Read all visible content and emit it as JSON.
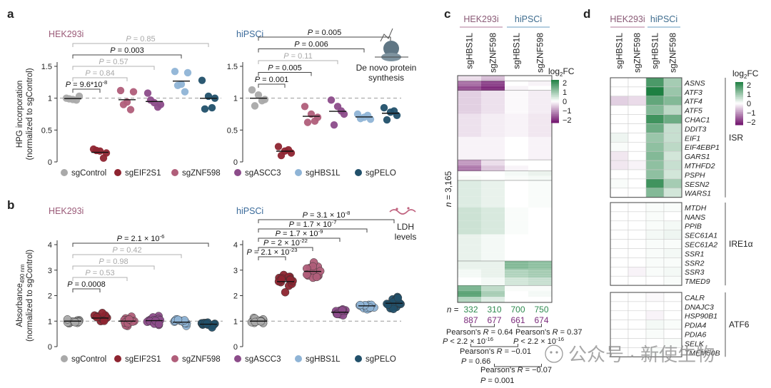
{
  "figure": {
    "panel_labels": [
      "a",
      "b",
      "c",
      "d"
    ],
    "groups": [
      "HEK293i",
      "hiPSCi"
    ],
    "condition_labels": [
      "sgControl",
      "sgEIF2S1",
      "sgZNF598",
      "sgASCC3",
      "sgHBS1L",
      "sgPELO"
    ],
    "colors": [
      "#a9a9a9",
      "#8e2430",
      "#b05e7a",
      "#8c4c8a",
      "#8fb4d6",
      "#21506a"
    ],
    "watermark": "公众号 · 新使生物"
  },
  "chart_data": [
    {
      "type": "scatter",
      "panel": "a",
      "groups": [
        "HEK293i",
        "hiPSCi"
      ],
      "ylabel_line1": "HPG incorporation",
      "ylabel_line2": "(normalized to sgControl)",
      "ylim": [
        0,
        1.5
      ],
      "yticks": [
        "0",
        "0.5",
        "1",
        "1.5"
      ],
      "icon_caption": [
        "De novo protein",
        "synthesis"
      ],
      "series": [
        {
          "group": "HEK293i",
          "name": "sgControl",
          "values": [
            1.0,
            0.98,
            1.03,
            0.99,
            0.97
          ]
        },
        {
          "group": "HEK293i",
          "name": "sgEIF2S1",
          "values": [
            0.2,
            0.17,
            0.14,
            0.18,
            0.06
          ]
        },
        {
          "group": "HEK293i",
          "name": "sgZNF598",
          "values": [
            1.12,
            0.94,
            1.1,
            0.9,
            0.82
          ]
        },
        {
          "group": "HEK293i",
          "name": "sgASCC3",
          "values": [
            1.08,
            0.93,
            0.9,
            0.97,
            0.86
          ]
        },
        {
          "group": "HEK293i",
          "name": "sgHBS1L",
          "values": [
            1.42,
            1.22,
            1.4,
            1.2,
            1.1
          ]
        },
        {
          "group": "HEK293i",
          "name": "sgPELO",
          "values": [
            1.28,
            1.03,
            1.0,
            0.83,
            0.85
          ]
        },
        {
          "group": "hiPSCi",
          "name": "sgControl",
          "values": [
            1.13,
            1.05,
            0.98,
            0.88,
            0.96
          ]
        },
        {
          "group": "hiPSCi",
          "name": "sgEIF2S1",
          "values": [
            0.24,
            0.17,
            0.14,
            0.1,
            0.19
          ]
        },
        {
          "group": "hiPSCi",
          "name": "sgZNF598",
          "values": [
            0.87,
            0.75,
            0.7,
            0.62,
            0.64
          ]
        },
        {
          "group": "hiPSCi",
          "name": "sgASCC3",
          "values": [
            0.97,
            0.87,
            0.75,
            0.58,
            0.8
          ]
        },
        {
          "group": "hiPSCi",
          "name": "sgHBS1L",
          "values": [
            0.75,
            0.7,
            0.67,
            0.68,
            0.73
          ]
        },
        {
          "group": "hiPSCi",
          "name": "sgPELO",
          "values": [
            0.85,
            0.78,
            0.73,
            0.66,
            0.8
          ]
        }
      ],
      "brackets": [
        {
          "group": "HEK293i",
          "from": 0,
          "to": 1,
          "label": "P = 9.6*10^-8",
          "faded": false
        },
        {
          "group": "HEK293i",
          "from": 0,
          "to": 2,
          "label": "P = 0.84",
          "faded": true
        },
        {
          "group": "HEK293i",
          "from": 0,
          "to": 3,
          "label": "P = 0.57",
          "faded": true
        },
        {
          "group": "HEK293i",
          "from": 0,
          "to": 4,
          "label": "P = 0.003",
          "faded": false
        },
        {
          "group": "HEK293i",
          "from": 0,
          "to": 5,
          "label": "P = 0.85",
          "faded": true
        },
        {
          "group": "hiPSCi",
          "from": 0,
          "to": 1,
          "label": "P = 0.001",
          "faded": false
        },
        {
          "group": "hiPSCi",
          "from": 0,
          "to": 2,
          "label": "P = 0.005",
          "faded": false
        },
        {
          "group": "hiPSCi",
          "from": 0,
          "to": 3,
          "label": "P = 0.11",
          "faded": true
        },
        {
          "group": "hiPSCi",
          "from": 0,
          "to": 4,
          "label": "P = 0.006",
          "faded": false
        },
        {
          "group": "hiPSCi",
          "from": 0,
          "to": 5,
          "label": "P = 0.005",
          "faded": false
        }
      ]
    },
    {
      "type": "scatter",
      "panel": "b",
      "groups": [
        "HEK293i",
        "hiPSCi"
      ],
      "ylabel_line1": "Absorbance490 nm",
      "ylabel_line2": "(normalized to sgControl)",
      "ylim": [
        0,
        4
      ],
      "yticks": [
        "0",
        "1",
        "2",
        "3",
        "4"
      ],
      "icon_caption": [
        "LDH",
        "levels"
      ],
      "series": [
        {
          "group": "HEK293i",
          "name": "sgControl",
          "center": 1.0,
          "spread": 0.12,
          "count": 14
        },
        {
          "group": "HEK293i",
          "name": "sgEIF2S1",
          "center": 1.12,
          "spread": 0.25,
          "count": 14
        },
        {
          "group": "HEK293i",
          "name": "sgZNF598",
          "center": 1.0,
          "spread": 0.28,
          "count": 14
        },
        {
          "group": "HEK293i",
          "name": "sgASCC3",
          "center": 1.02,
          "spread": 0.26,
          "count": 14
        },
        {
          "group": "HEK293i",
          "name": "sgHBS1L",
          "center": 0.96,
          "spread": 0.24,
          "count": 14
        },
        {
          "group": "HEK293i",
          "name": "sgPELO",
          "center": 0.88,
          "spread": 0.15,
          "count": 14
        },
        {
          "group": "hiPSCi",
          "name": "sgControl",
          "center": 1.0,
          "spread": 0.18,
          "count": 14
        },
        {
          "group": "hiPSCi",
          "name": "sgEIF2S1",
          "center": 2.55,
          "spread": 0.45,
          "count": 16
        },
        {
          "group": "hiPSCi",
          "name": "sgZNF598",
          "center": 2.95,
          "spread": 0.55,
          "count": 16
        },
        {
          "group": "hiPSCi",
          "name": "sgASCC3",
          "center": 1.35,
          "spread": 0.18,
          "count": 14
        },
        {
          "group": "hiPSCi",
          "name": "sgHBS1L",
          "center": 1.6,
          "spread": 0.38,
          "count": 16
        },
        {
          "group": "hiPSCi",
          "name": "sgPELO",
          "center": 1.7,
          "spread": 0.5,
          "count": 18
        }
      ],
      "brackets": [
        {
          "group": "HEK293i",
          "from": 0,
          "to": 1,
          "label": "P = 0.0008",
          "faded": false
        },
        {
          "group": "HEK293i",
          "from": 0,
          "to": 2,
          "label": "P = 0.53",
          "faded": true
        },
        {
          "group": "HEK293i",
          "from": 0,
          "to": 3,
          "label": "P = 0.98",
          "faded": true
        },
        {
          "group": "HEK293i",
          "from": 0,
          "to": 4,
          "label": "P = 0.42",
          "faded": true
        },
        {
          "group": "HEK293i",
          "from": 0,
          "to": 5,
          "label": "P = 2.1 × 10^-6",
          "faded": false
        },
        {
          "group": "hiPSCi",
          "from": 0,
          "to": 1,
          "label": "P = 2.1 × 10^-23",
          "faded": false
        },
        {
          "group": "hiPSCi",
          "from": 0,
          "to": 2,
          "label": "P = 2 × 10^-22",
          "faded": false
        },
        {
          "group": "hiPSCi",
          "from": 0,
          "to": 3,
          "label": "P = 1.7 × 10^-9",
          "faded": false
        },
        {
          "group": "hiPSCi",
          "from": 0,
          "to": 4,
          "label": "P = 1.7 × 10^-7",
          "faded": false
        },
        {
          "group": "hiPSCi",
          "from": 0,
          "to": 5,
          "label": "P = 3.1 × 10^-8",
          "faded": false
        }
      ]
    },
    {
      "type": "heatmap",
      "panel": "c",
      "group_labels": [
        "HEK293i",
        "hiPSCi"
      ],
      "columns": [
        "sgHBS1L",
        "sgZNF598",
        "sgHBS1L",
        "sgZNF598"
      ],
      "colorbar_title": "log2FC",
      "colorbar_ticks": [
        "2",
        "1",
        "0",
        "−1",
        "−2"
      ],
      "n_label": "n = 3,165",
      "counts_prefix": "n =",
      "counts_up": [
        "332",
        "310",
        "700",
        "750"
      ],
      "counts_down": [
        "887",
        "677",
        "661",
        "674"
      ],
      "correlations": [
        {
          "label": "Pearson's R = 0.64",
          "p": "P < 2.2 × 10^-16"
        },
        {
          "label": "Pearson's R = 0.37",
          "p": "P < 2.2 × 10^-16"
        },
        {
          "label": "Pearson's R = −0.01",
          "p": "P = 0.66"
        },
        {
          "label": "Pearson's R = −0.07",
          "p": "P = 0.001"
        }
      ],
      "blocks": [
        {
          "rows": 6,
          "values": [
            [
              -0.3,
              -0.6,
              0.0,
              0.0
            ]
          ]
        },
        {
          "rows": 10,
          "values": [
            [
              -1.3,
              -1.7,
              0.0,
              -0.1
            ],
            [
              -1.6,
              -1.9,
              -0.1,
              0.0
            ]
          ]
        },
        {
          "rows": 74,
          "values": [
            [
              -0.4,
              -0.25,
              -0.05,
              -0.15
            ],
            [
              -0.25,
              -0.15,
              -0.1,
              -0.2
            ],
            [
              -0.1,
              -0.1,
              0.0,
              -0.1
            ]
          ]
        },
        {
          "rows": 12,
          "values": [
            [
              -0.9,
              -0.3,
              0.0,
              0.0
            ],
            [
              -1.2,
              -0.5,
              -0.1,
              0.0
            ]
          ]
        },
        {
          "rows": 10,
          "values": [
            [
              0.0,
              0.0,
              0.1,
              0.2
            ],
            [
              0.05,
              0.0,
              0.05,
              0.1
            ]
          ]
        },
        {
          "rows": 86,
          "values": [
            [
              0.3,
              0.2,
              0.0,
              0.05
            ],
            [
              0.45,
              0.35,
              0.05,
              0.0
            ],
            [
              0.2,
              0.1,
              0.0,
              0.0
            ]
          ]
        },
        {
          "rows": 26,
          "values": [
            [
              0.2,
              0.2,
              1.1,
              1.0
            ],
            [
              0.1,
              0.2,
              0.7,
              0.8
            ],
            [
              0.0,
              0.1,
              0.4,
              0.5
            ]
          ]
        },
        {
          "rows": 18,
          "values": [
            [
              1.2,
              0.6,
              0.05,
              0.05
            ],
            [
              1.5,
              0.8,
              0.0,
              0.1
            ],
            [
              0.7,
              0.3,
              0.0,
              0.0
            ]
          ]
        }
      ]
    },
    {
      "type": "heatmap",
      "panel": "d",
      "group_labels": [
        "HEK293i",
        "hiPSCi"
      ],
      "columns": [
        "sgHBS1L",
        "sgZNF598",
        "sgHBS1L",
        "sgZNF598"
      ],
      "colorbar_title": "log2FC",
      "colorbar_ticks": [
        "2",
        "1",
        "0",
        "−1",
        "−2"
      ],
      "sections": [
        {
          "name": "ISR",
          "genes": [
            "ASNS",
            "ATF3",
            "ATF4",
            "ATF5",
            "CHAC1",
            "DDIT3",
            "EIF1",
            "EIF4EBP1",
            "GARS1",
            "MTHFD2",
            "PSPH",
            "SESN2",
            "WARS1"
          ],
          "values": [
            [
              0.0,
              0.0,
              1.6,
              0.8
            ],
            [
              0.0,
              0.0,
              2.0,
              0.9
            ],
            [
              -0.4,
              -0.3,
              1.4,
              1.1
            ],
            [
              0.0,
              0.0,
              1.1,
              0.6
            ],
            [
              0.0,
              0.0,
              1.7,
              1.3
            ],
            [
              0.0,
              0.0,
              1.3,
              0.5
            ],
            [
              0.15,
              0.0,
              0.9,
              0.5
            ],
            [
              0.05,
              0.0,
              1.0,
              0.6
            ],
            [
              -0.2,
              0.0,
              1.1,
              0.4
            ],
            [
              -0.2,
              -0.1,
              1.0,
              0.5
            ],
            [
              0.0,
              0.0,
              1.0,
              0.4
            ],
            [
              0.05,
              0.0,
              1.7,
              0.8
            ],
            [
              0.0,
              0.0,
              1.1,
              0.4
            ]
          ]
        },
        {
          "name": "IRE1α",
          "genes": [
            "MTDH",
            "NANS",
            "PPIB",
            "SEC61A1",
            "SEC61A2",
            "SSR1",
            "SSR2",
            "SSR3",
            "TMED9"
          ],
          "values": [
            [
              0.0,
              0.0,
              0.05,
              0.05
            ],
            [
              0.0,
              0.0,
              0.05,
              0.0
            ],
            [
              0.0,
              0.0,
              0.05,
              0.1
            ],
            [
              0.0,
              0.0,
              0.1,
              0.15
            ],
            [
              0.0,
              0.0,
              0.05,
              0.05
            ],
            [
              0.0,
              0.0,
              0.05,
              0.1
            ],
            [
              0.0,
              0.0,
              0.05,
              0.05
            ],
            [
              0.0,
              -0.1,
              0.05,
              0.1
            ],
            [
              0.0,
              0.0,
              0.0,
              0.05
            ]
          ]
        },
        {
          "name": "ATF6",
          "genes": [
            "CALR",
            "DNAJC3",
            "HSP90B1",
            "PDIA4",
            "PDIA6",
            "SELK",
            "TMEM50B"
          ],
          "values": [
            [
              0.0,
              0.0,
              -0.05,
              0.0
            ],
            [
              0.0,
              0.0,
              0.0,
              0.0
            ],
            [
              0.0,
              0.0,
              -0.1,
              0.0
            ],
            [
              0.0,
              0.0,
              0.1,
              0.05
            ],
            [
              0.0,
              0.0,
              0.05,
              0.0
            ],
            [
              0.0,
              0.0,
              0.0,
              0.05
            ],
            [
              0.0,
              0.0,
              0.05,
              0.0
            ]
          ]
        }
      ]
    }
  ]
}
